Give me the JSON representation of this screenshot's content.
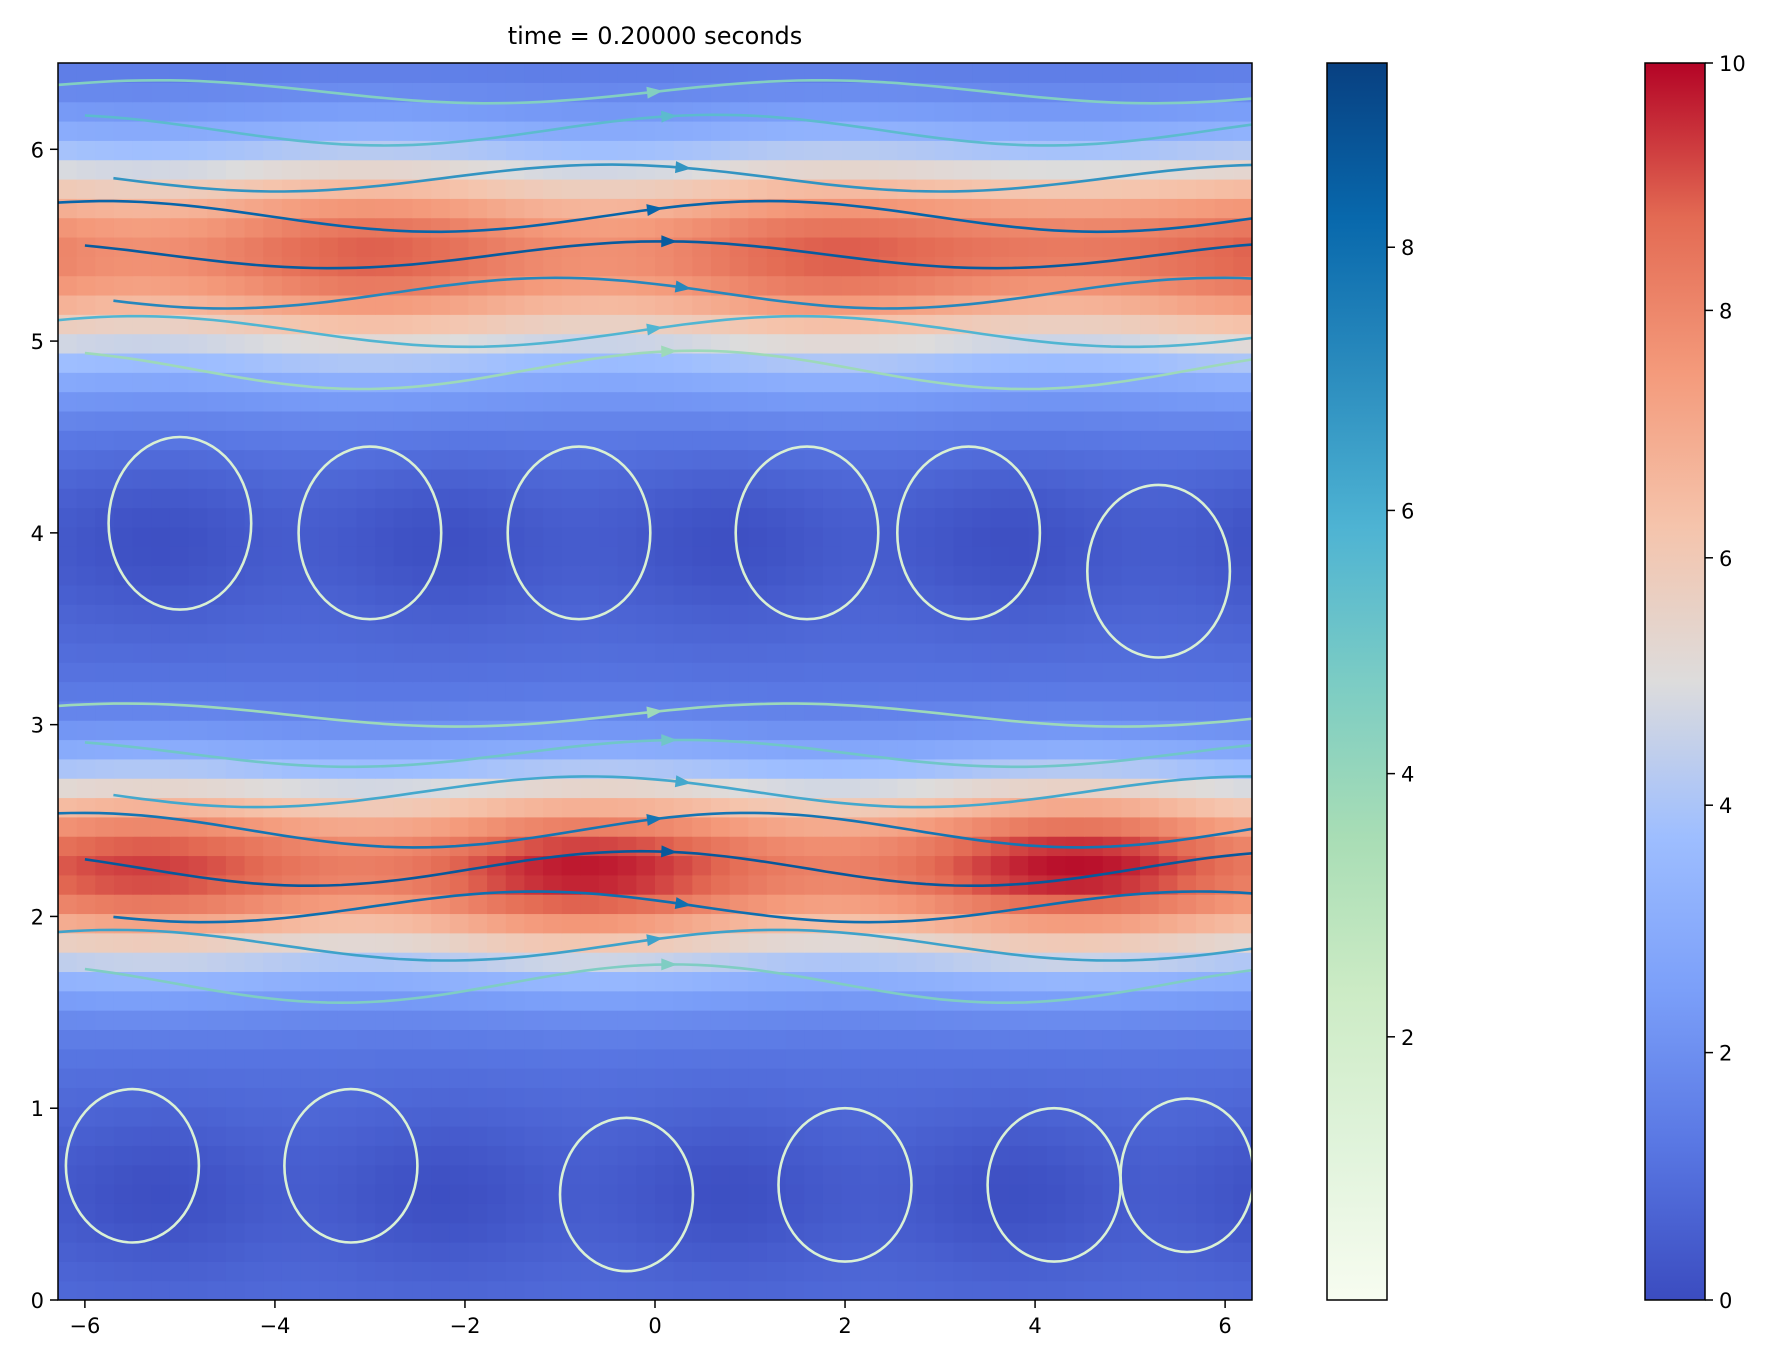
{
  "chart_data": {
    "type": "heatmap",
    "title": "time = 0.20000 seconds",
    "xlabel": "",
    "ylabel": "",
    "xlim": [
      -6.283,
      6.283
    ],
    "ylim": [
      0,
      6.45
    ],
    "x_ticks": [
      -6,
      -4,
      -2,
      0,
      2,
      4,
      6
    ],
    "x_tick_labels": [
      "−6",
      "−4",
      "−2",
      "0",
      "2",
      "4",
      "6"
    ],
    "y_ticks": [
      0,
      1,
      2,
      3,
      4,
      5,
      6
    ],
    "y_tick_labels": [
      "0",
      "1",
      "2",
      "3",
      "4",
      "5",
      "6"
    ],
    "heatmap": {
      "colormap": "coolwarm",
      "range": [
        0,
        10
      ],
      "bands": [
        {
          "y_center": 5.45,
          "peak": 8.9,
          "width": 0.55
        },
        {
          "y_center": 2.25,
          "peak": 9.3,
          "width": 0.5
        }
      ],
      "hot_spots": [
        {
          "x": 4.2,
          "y": 5.55,
          "value": 9.4
        },
        {
          "x": -1.2,
          "y": 2.15,
          "value": 9.6
        },
        {
          "x": 4.6,
          "y": 2.3,
          "value": 9.0
        }
      ],
      "low_regions": [
        {
          "y_center": 3.95,
          "value": 0.6
        },
        {
          "y_center": 0.55,
          "value": 0.5
        }
      ]
    },
    "streamlines": {
      "colormap": "GnBu",
      "color_range": [
        0,
        9.4
      ],
      "description_note": ""
    },
    "colorbars": [
      {
        "colormap": "GnBu",
        "range": [
          0,
          9.4
        ],
        "ticks": [
          2,
          4,
          6,
          8
        ],
        "tick_labels": [
          "2",
          "4",
          "6",
          "8"
        ]
      },
      {
        "colormap": "coolwarm",
        "range": [
          0,
          10
        ],
        "ticks": [
          0,
          2,
          4,
          6,
          8,
          10
        ],
        "tick_labels": [
          "0",
          "2",
          "4",
          "6",
          "8",
          "10"
        ]
      }
    ]
  }
}
